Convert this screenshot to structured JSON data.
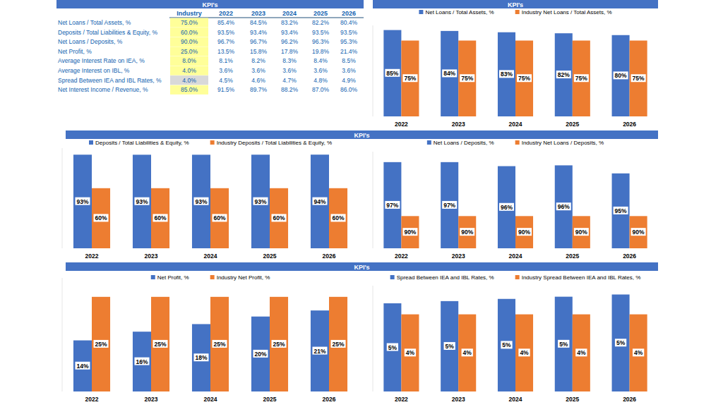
{
  "headers": [
    "KPI's",
    "KPI's",
    "KPI's",
    "KPI's"
  ],
  "table": {
    "header": [
      "Industry",
      "2022",
      "2023",
      "2024",
      "2025",
      "2026"
    ],
    "rows": [
      {
        "label": "Net Loans / Total Assets, %",
        "cells": [
          "75.0%",
          "85.4%",
          "84.5%",
          "83.2%",
          "82.2%",
          "80.4%"
        ]
      },
      {
        "label": "Deposits / Total Liabilities & Equity, %",
        "cells": [
          "60.0%",
          "93.5%",
          "93.4%",
          "93.4%",
          "93.5%",
          "93.5%"
        ]
      },
      {
        "label": "Net Loans / Deposits, %",
        "cells": [
          "90.0%",
          "96.7%",
          "96.7%",
          "96.2%",
          "96.3%",
          "95.3%"
        ]
      },
      {
        "label": "Net Profit, %",
        "cells": [
          "25.0%",
          "13.5%",
          "15.8%",
          "17.8%",
          "19.8%",
          "21.4%"
        ]
      },
      {
        "label": "Average Interest Rate on IEA, %",
        "cells": [
          "8.0%",
          "8.1%",
          "8.2%",
          "8.3%",
          "8.4%",
          "8.5%"
        ]
      },
      {
        "label": "Average Interest on IBL, %",
        "cells": [
          "4.0%",
          "3.6%",
          "3.6%",
          "3.6%",
          "3.6%",
          "3.6%"
        ]
      },
      {
        "label": "Spread Between IEA and IBL Rates, %",
        "cells": [
          "4.0%",
          "4.5%",
          "4.6%",
          "4.7%",
          "4.8%",
          "4.9%"
        ]
      },
      {
        "label": "Net Interest Income / Revenue, %",
        "cells": [
          "85.0%",
          "91.5%",
          "89.7%",
          "88.2%",
          "87.0%",
          "86.0%"
        ]
      }
    ]
  },
  "chart_data": [
    {
      "type": "bar",
      "categories": [
        "2022",
        "2023",
        "2024",
        "2025",
        "2026"
      ],
      "series": [
        {
          "name": "Net Loans / Total Assets, %",
          "color": "#4472c4",
          "values": [
            85.4,
            84.5,
            83.2,
            82.2,
            80.4
          ],
          "value_labels": [
            "85%",
            "84%",
            "83%",
            "82%",
            "80%"
          ]
        },
        {
          "name": "Industry Net Loans / Total Assets, %",
          "color": "#ed7d31",
          "values": [
            75,
            75,
            75,
            75,
            75
          ],
          "value_labels": [
            "75%",
            "75%",
            "75%",
            "75%",
            "75%"
          ]
        }
      ],
      "ylim": [
        0,
        90
      ],
      "tick_labels": "x",
      "data_labels": true,
      "legend": "top"
    },
    {
      "type": "bar",
      "categories": [
        "2022",
        "2023",
        "2024",
        "2025",
        "2026"
      ],
      "series": [
        {
          "name": "Deposits / Total Liabilities & Equity, %",
          "color": "#4472c4",
          "values": [
            93.45,
            93.4,
            93.4,
            93.45,
            93.5
          ],
          "value_labels": [
            "93%",
            "93%",
            "93%",
            "93%",
            "94%"
          ]
        },
        {
          "name": "Industry Deposits / Total Liabilities & Equity, %",
          "color": "#ed7d31",
          "values": [
            60,
            60,
            60,
            60,
            60
          ],
          "value_labels": [
            "60%",
            "60%",
            "60%",
            "60%",
            "60%"
          ]
        }
      ],
      "ylim": [
        0,
        100
      ],
      "tick_labels": "x",
      "data_labels": true,
      "legend": "top"
    },
    {
      "type": "bar",
      "categories": [
        "2022",
        "2023",
        "2024",
        "2025",
        "2026"
      ],
      "series": [
        {
          "name": "Net Loans / Deposits, %",
          "color": "#4472c4",
          "values": [
            96.7,
            96.7,
            96.2,
            96.3,
            95.3
          ],
          "value_labels": [
            "97%",
            "97%",
            "96%",
            "96%",
            "95%"
          ]
        },
        {
          "name": "Industry Net Loans / Deposits, %",
          "color": "#ed7d31",
          "values": [
            90,
            90,
            90,
            90,
            90
          ],
          "value_labels": [
            "90%",
            "90%",
            "90%",
            "90%",
            "90%"
          ]
        }
      ],
      "ylim": [
        86,
        98
      ],
      "tick_labels": "x",
      "data_labels": true,
      "legend": "top"
    },
    {
      "type": "bar",
      "categories": [
        "2022",
        "2023",
        "2024",
        "2025",
        "2026"
      ],
      "series": [
        {
          "name": "Net Profit, %",
          "color": "#4472c4",
          "values": [
            13.5,
            15.8,
            17.8,
            19.8,
            21.4
          ],
          "value_labels": [
            "14%",
            "16%",
            "18%",
            "20%",
            "21%"
          ]
        },
        {
          "name": "Industry Net Profit, %",
          "color": "#ed7d31",
          "values": [
            25,
            25,
            25,
            25,
            25
          ],
          "value_labels": [
            "25%",
            "25%",
            "25%",
            "25%",
            "25%"
          ]
        }
      ],
      "ylim": [
        0,
        30
      ],
      "tick_labels": "x",
      "data_labels": true,
      "legend": "top"
    },
    {
      "type": "bar",
      "categories": [
        "2022",
        "2023",
        "2024",
        "2025",
        "2026"
      ],
      "series": [
        {
          "name": "Spread Between IEA and IBL Rates, %",
          "color": "#4472c4",
          "values": [
            4.5,
            4.6,
            4.7,
            4.8,
            4.9
          ],
          "value_labels": [
            "5%",
            "5%",
            "5%",
            "5%",
            "5%"
          ]
        },
        {
          "name": "Industry Spread Between IEA and IBL Rates, %",
          "color": "#ed7d31",
          "values": [
            4,
            4,
            4,
            4,
            4
          ],
          "value_labels": [
            "4%",
            "4%",
            "4%",
            "4%",
            "4%"
          ]
        }
      ],
      "ylim": [
        0.5,
        5.3
      ],
      "tick_labels": "x",
      "data_labels": true,
      "legend": "top"
    }
  ]
}
